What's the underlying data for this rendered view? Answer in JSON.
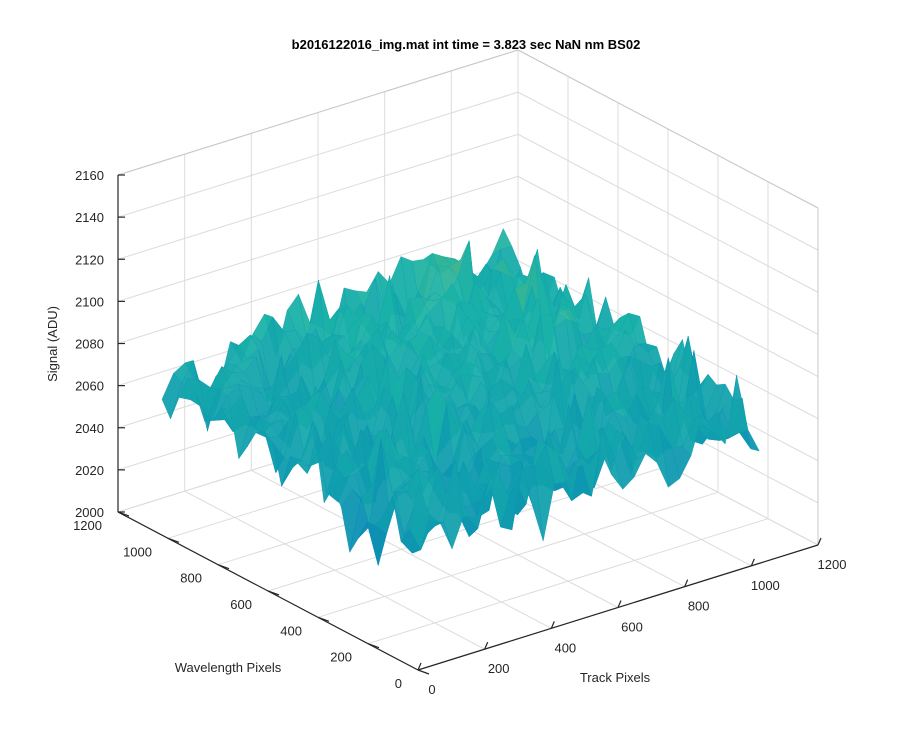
{
  "chart_data": {
    "type": "surface",
    "title": "b2016122016_img.mat int time = 3.823 sec  NaN nm BS02",
    "xlabel": "Track Pixels",
    "ylabel": "Wavelength Pixels",
    "zlabel": "Signal (ADU)",
    "xlim": [
      0,
      1200
    ],
    "ylim": [
      0,
      1200
    ],
    "zlim": [
      2000,
      2160
    ],
    "x_ticks": [
      0,
      200,
      400,
      600,
      800,
      1000,
      1200
    ],
    "y_ticks": [
      0,
      200,
      400,
      600,
      800,
      1000,
      1200
    ],
    "z_ticks": [
      2000,
      2020,
      2040,
      2060,
      2080,
      2100,
      2120,
      2140,
      2160
    ],
    "grid": true,
    "colormap": "parula",
    "colors": {
      "low": "#0072bd",
      "mid": "#19b2a8",
      "high": "#e6c129"
    },
    "data_extent": {
      "x": [
        0,
        1024
      ],
      "y": [
        0,
        1024
      ]
    },
    "surface_summary": {
      "mean": 2065,
      "min": 2020,
      "max": 2150
    }
  }
}
